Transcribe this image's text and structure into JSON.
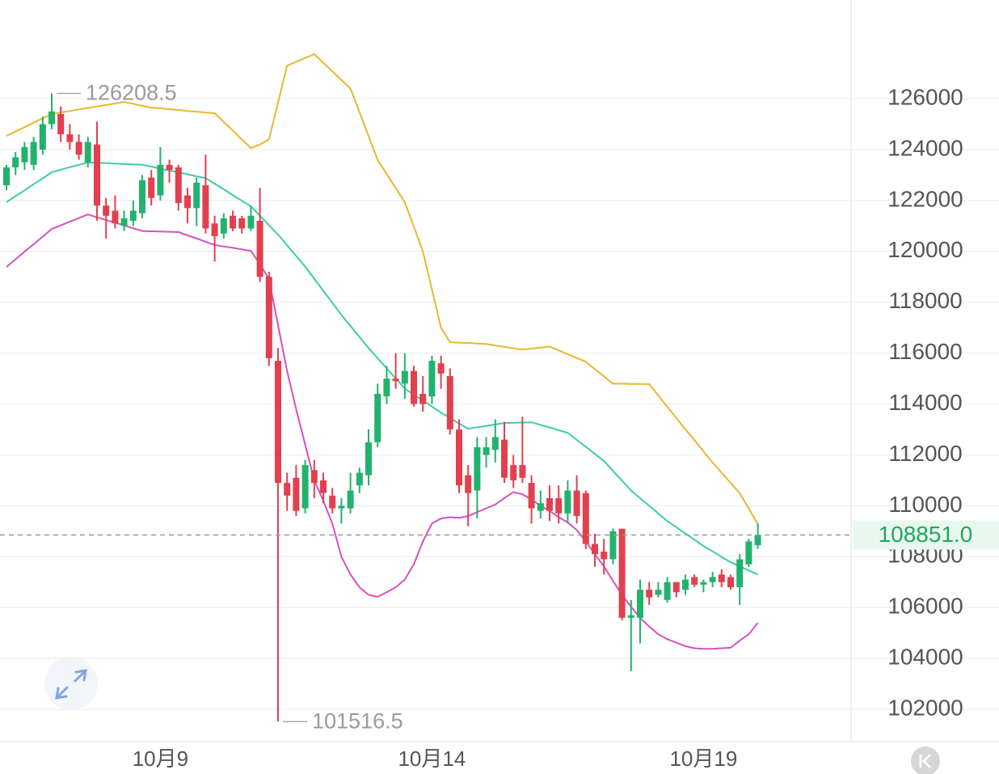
{
  "chart_data": {
    "type": "candlestick",
    "categories": [
      null,
      null,
      null,
      null,
      null,
      null,
      null,
      null,
      null,
      null,
      null,
      null,
      null,
      null,
      null,
      null,
      null,
      "10月9",
      null,
      null,
      null,
      null,
      null,
      null,
      null,
      null,
      null,
      null,
      null,
      null,
      null,
      null,
      null,
      null,
      null,
      null,
      null,
      null,
      null,
      null,
      null,
      null,
      null,
      null,
      null,
      null,
      null,
      "10月14",
      null,
      null,
      null,
      null,
      null,
      null,
      null,
      null,
      null,
      null,
      null,
      null,
      null,
      null,
      null,
      null,
      null,
      null,
      null,
      null,
      null,
      null,
      null,
      null,
      null,
      null,
      null,
      null,
      null,
      "10月19",
      null,
      null,
      null,
      null,
      null,
      null
    ],
    "open": [
      122600,
      123300,
      123500,
      123400,
      124000,
      125000,
      125400,
      124600,
      124300,
      123500,
      124200,
      121800,
      121600,
      121000,
      121200,
      121500,
      122900,
      122200,
      123400,
      123300,
      122200,
      121700,
      122600,
      121100,
      120700,
      121400,
      121300,
      120900,
      121200,
      119000,
      115700,
      110900,
      111100,
      109900,
      111400,
      111000,
      110400,
      109900,
      109900,
      110800,
      111200,
      112500,
      114300,
      115000,
      114800,
      115300,
      114400,
      114300,
      115600,
      115100,
      113000,
      111200,
      110600,
      112000,
      112200,
      112600,
      111600,
      111600,
      110900,
      109800,
      110300,
      110300,
      109700,
      110600,
      110500,
      108500,
      108200,
      107900,
      109100,
      105600,
      105600,
      106700,
      106500,
      106300,
      107000,
      106700,
      107200,
      106900,
      107000,
      107300,
      107200,
      106800,
      107700,
      108450
    ],
    "high": [
      123400,
      123900,
      124300,
      124500,
      125300,
      126208.5,
      125700,
      125000,
      124600,
      124500,
      125100,
      122100,
      122200,
      121600,
      122000,
      123000,
      123200,
      124100,
      123600,
      123400,
      122500,
      122900,
      123800,
      121400,
      121500,
      121600,
      121400,
      121800,
      122500,
      119200,
      116200,
      111300,
      111600,
      111800,
      111800,
      111300,
      110700,
      110300,
      111300,
      111500,
      113000,
      114800,
      115500,
      116000,
      116000,
      115500,
      115100,
      115900,
      115900,
      115400,
      113400,
      111600,
      112700,
      112700,
      113400,
      113300,
      112000,
      113500,
      111200,
      110600,
      110800,
      110800,
      111000,
      111200,
      110600,
      108900,
      108700,
      109100,
      109100,
      106300,
      107100,
      107000,
      107000,
      107200,
      107000,
      107300,
      107300,
      107100,
      107400,
      107500,
      107300,
      108100,
      108700,
      109300
    ],
    "low": [
      122400,
      123000,
      123200,
      123200,
      123800,
      124800,
      124300,
      124000,
      123600,
      123300,
      121200,
      120500,
      120900,
      120800,
      121000,
      121300,
      121800,
      122000,
      122700,
      121600,
      121100,
      121000,
      120700,
      119600,
      120500,
      120800,
      120700,
      120800,
      118800,
      115500,
      101516.5,
      109800,
      109600,
      109700,
      110300,
      110100,
      109700,
      109300,
      109700,
      110500,
      110800,
      112300,
      114000,
      114600,
      114200,
      113900,
      113700,
      114000,
      114600,
      112800,
      110500,
      109200,
      109500,
      111500,
      111700,
      110900,
      110700,
      110900,
      109300,
      109500,
      109400,
      109300,
      109300,
      109300,
      108300,
      107600,
      107300,
      107700,
      105500,
      103500,
      104600,
      106100,
      106400,
      106200,
      106400,
      106500,
      106800,
      106600,
      106800,
      106800,
      106700,
      106100,
      107600,
      108300
    ],
    "close": [
      123300,
      123700,
      124100,
      124300,
      125000,
      125500,
      124600,
      124300,
      123800,
      124300,
      121800,
      121400,
      121100,
      121300,
      121600,
      122800,
      122100,
      123400,
      123200,
      121900,
      121700,
      122700,
      120900,
      120600,
      121300,
      120900,
      120900,
      121400,
      119000,
      115800,
      110900,
      110400,
      109800,
      111600,
      110900,
      110500,
      109900,
      110000,
      110600,
      111300,
      112500,
      114400,
      115000,
      114900,
      115300,
      114000,
      114000,
      115700,
      115200,
      113000,
      110800,
      110500,
      112300,
      112300,
      112700,
      111100,
      111000,
      111100,
      109900,
      110100,
      109800,
      109700,
      110600,
      109600,
      108500,
      108100,
      107900,
      109000,
      105600,
      105700,
      106700,
      106400,
      106700,
      107000,
      106600,
      107100,
      106900,
      107000,
      107200,
      107000,
      106800,
      107900,
      108600,
      108851
    ],
    "up_color": "#23b26d",
    "down_color": "#e2404f",
    "lines": [
      {
        "color": "#e8b730",
        "values": [
          124540,
          124710,
          124880,
          125060,
          125230,
          125400,
          125460,
          125520,
          125580,
          125640,
          125700,
          125750,
          125810,
          125870,
          125800,
          125720,
          125650,
          125620,
          125590,
          125560,
          125520,
          125490,
          125460,
          125430,
          125090,
          124750,
          124400,
          124060,
          124200,
          124410,
          125850,
          127300,
          127450,
          127600,
          127750,
          127410,
          127080,
          126740,
          126400,
          125470,
          124530,
          123600,
          123040,
          122490,
          121930,
          120970,
          120000,
          118500,
          117000,
          116430,
          116410,
          116400,
          116380,
          116360,
          116300,
          116250,
          116190,
          116140,
          116180,
          116220,
          116260,
          116110,
          115960,
          115810,
          115660,
          115370,
          115090,
          114800,
          114800,
          114790,
          114790,
          114780,
          114340,
          113890,
          113450,
          113010,
          112580,
          112140,
          111700,
          111300,
          110900,
          110500,
          109890,
          109280
        ]
      },
      {
        "color": "#3fcca8",
        "values": [
          121930,
          122170,
          122400,
          122640,
          122870,
          123110,
          123210,
          123310,
          123400,
          123500,
          123480,
          123470,
          123450,
          123430,
          123420,
          123400,
          123330,
          123250,
          123180,
          123100,
          123030,
          122950,
          122880,
          122660,
          122440,
          122210,
          121990,
          121770,
          121400,
          121030,
          120660,
          120240,
          119820,
          119400,
          118930,
          118450,
          117980,
          117500,
          117070,
          116630,
          116200,
          115800,
          115400,
          115010,
          114610,
          114370,
          114140,
          113900,
          113660,
          113450,
          113240,
          113030,
          113090,
          113140,
          113200,
          113250,
          113260,
          113270,
          113280,
          113180,
          113080,
          112970,
          112870,
          112590,
          112320,
          112040,
          111760,
          111370,
          110990,
          110600,
          110300,
          110000,
          109700,
          109400,
          109160,
          108910,
          108670,
          108420,
          108210,
          107990,
          107780,
          107620,
          107460,
          107300
        ]
      },
      {
        "color": "#d94fc0",
        "values": [
          119390,
          119690,
          119990,
          120280,
          120580,
          120880,
          121020,
          121170,
          121310,
          121450,
          121340,
          121230,
          121130,
          121020,
          120910,
          120800,
          120790,
          120780,
          120770,
          120760,
          120630,
          120510,
          120380,
          120250,
          120190,
          120140,
          120080,
          120020,
          119500,
          118910,
          117100,
          115300,
          113800,
          112400,
          111000,
          110200,
          109300,
          108000,
          107300,
          106800,
          106500,
          106420,
          106600,
          106800,
          107100,
          107700,
          108600,
          109300,
          109500,
          109550,
          109530,
          109600,
          109750,
          109900,
          110050,
          110300,
          110540,
          110450,
          110250,
          110000,
          109800,
          109550,
          109350,
          109050,
          108600,
          108100,
          107620,
          107050,
          106500,
          106030,
          105600,
          105250,
          104950,
          104760,
          104620,
          104480,
          104400,
          104380,
          104380,
          104400,
          104420,
          104700,
          104950,
          105400
        ]
      }
    ],
    "last_price": {
      "value": 108851,
      "label": "108851.0"
    },
    "ylim": [
      100730,
      129880
    ],
    "yticks": [
      102000,
      104000,
      106000,
      108000,
      110000,
      112000,
      114000,
      116000,
      118000,
      120000,
      122000,
      124000,
      126000
    ],
    "grid": true
  }
}
